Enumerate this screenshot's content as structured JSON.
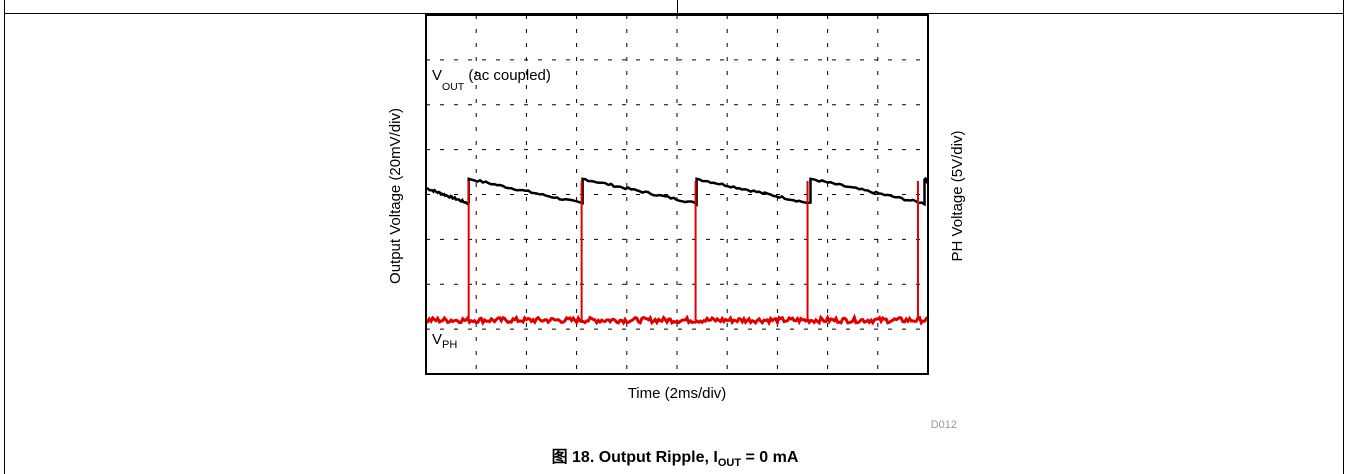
{
  "chart_data": {
    "type": "line",
    "title": "",
    "xlabel": "Time (2ms/div)",
    "ylabel_left": "Output Voltage (20mV/div)",
    "ylabel_right": "PH Voltage (5V/div)",
    "x_divisions": 10,
    "y_divisions": 8,
    "grid": true,
    "series": [
      {
        "name_main": "V",
        "name_sub": "OUT",
        "name_suffix": " (ac coupled)",
        "color": "#000000",
        "shape": "sawtooth",
        "period_div": 2.27,
        "first_jump_div": 0.85,
        "baseline_div": 3.8,
        "jump_div": 0.55
      },
      {
        "name_main": "V",
        "name_sub": "PH",
        "color": "#e00000",
        "shape": "pulses",
        "pulse_positions_div": [
          0.85,
          3.1,
          5.37,
          7.6,
          9.8
        ],
        "baseline_div": 1.2,
        "pulse_peak_div": 4.3
      }
    ],
    "watermark": "D012"
  },
  "caption": {
    "prefix": "图 18. Output Ripple, I",
    "sub": "OUT",
    "suffix": " = 0 mA"
  }
}
